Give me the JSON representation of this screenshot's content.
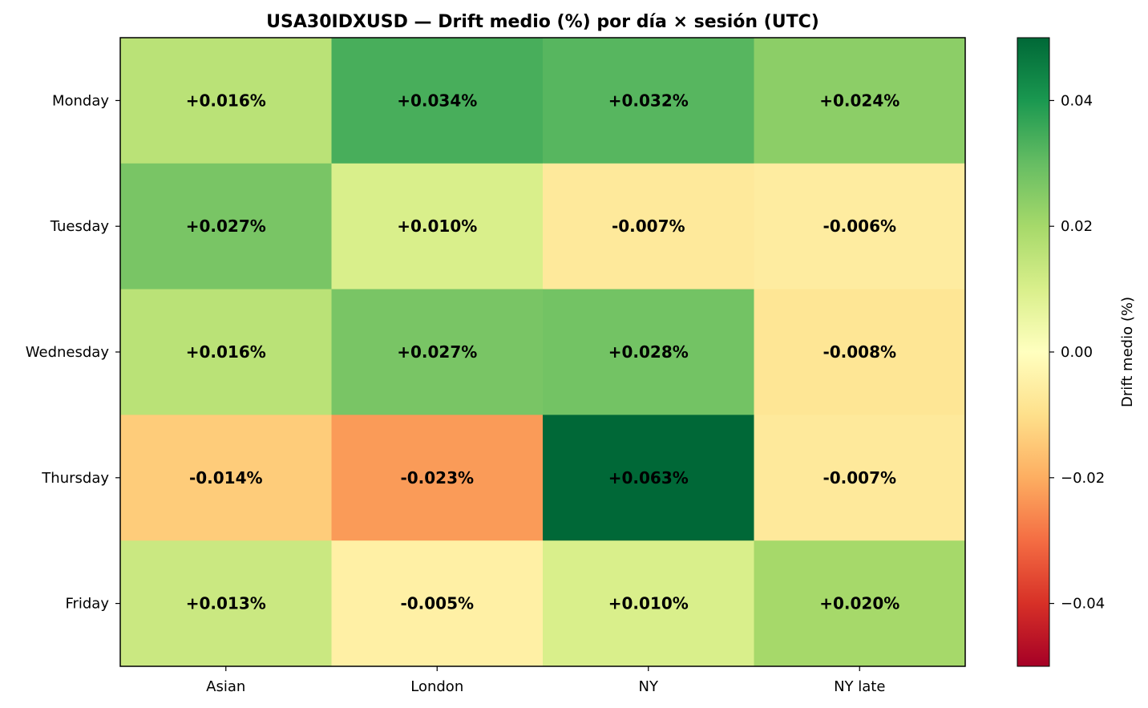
{
  "chart_data": {
    "type": "heatmap",
    "title": "USA30IDXUSD — Drift medio (%) por día × sesión (UTC)",
    "rows": [
      "Monday",
      "Tuesday",
      "Wednesday",
      "Thursday",
      "Friday"
    ],
    "columns": [
      "Asian",
      "London",
      "NY",
      "NY late"
    ],
    "values": [
      [
        0.016,
        0.034,
        0.032,
        0.024
      ],
      [
        0.027,
        0.01,
        -0.007,
        -0.006
      ],
      [
        0.016,
        0.027,
        0.028,
        -0.008
      ],
      [
        -0.014,
        -0.023,
        0.063,
        -0.007
      ],
      [
        0.013,
        -0.005,
        0.01,
        0.02
      ]
    ],
    "cell_labels": [
      [
        "+0.016%",
        "+0.034%",
        "+0.032%",
        "+0.024%"
      ],
      [
        "+0.027%",
        "+0.010%",
        "-0.007%",
        "-0.006%"
      ],
      [
        "+0.016%",
        "+0.027%",
        "+0.028%",
        "-0.008%"
      ],
      [
        "-0.014%",
        "-0.023%",
        "+0.063%",
        "-0.007%"
      ],
      [
        "+0.013%",
        "-0.005%",
        "+0.010%",
        "+0.020%"
      ]
    ],
    "colormap": "RdYlGn",
    "colorbar": {
      "label": "Drift medio (%)",
      "range": [
        -0.05,
        0.05
      ],
      "ticks": [
        0.04,
        0.02,
        0.0,
        -0.02,
        -0.04
      ],
      "tick_labels": [
        "0.04",
        "0.02",
        "0.00",
        "−0.02",
        "−0.04"
      ]
    },
    "grid": false
  }
}
